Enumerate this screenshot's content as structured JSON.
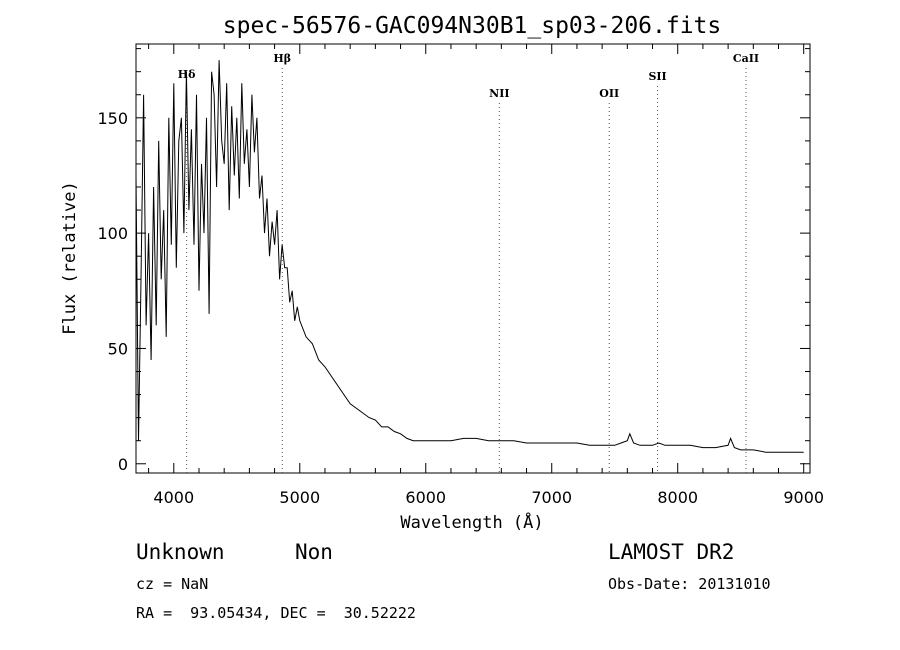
{
  "chart_data": {
    "type": "line",
    "title": "spec-56576-GAC094N30B1_sp03-206.fits",
    "xlabel": "Wavelength (Å)",
    "ylabel": "Flux (relative)",
    "xlim": [
      3700,
      9050
    ],
    "ylim": [
      -4,
      182
    ],
    "xticks": [
      {
        "value": 4000,
        "label": "4000"
      },
      {
        "value": 5000,
        "label": "5000"
      },
      {
        "value": 6000,
        "label": "6000"
      },
      {
        "value": 7000,
        "label": "7000"
      },
      {
        "value": 8000,
        "label": "8000"
      },
      {
        "value": 9000,
        "label": "9000"
      }
    ],
    "yticks": [
      {
        "value": 0,
        "label": "0"
      },
      {
        "value": 50,
        "label": "50"
      },
      {
        "value": 100,
        "label": "100"
      },
      {
        "value": 150,
        "label": "150"
      }
    ],
    "grid": false,
    "series": [
      {
        "x": [
          3700,
          3720,
          3740,
          3760,
          3780,
          3800,
          3820,
          3840,
          3860,
          3880,
          3900,
          3920,
          3940,
          3960,
          3980,
          4000,
          4020,
          4040,
          4060,
          4080,
          4100,
          4120,
          4140,
          4160,
          4180,
          4200,
          4220,
          4240,
          4260,
          4280,
          4300,
          4320,
          4340,
          4360,
          4380,
          4400,
          4420,
          4440,
          4460,
          4480,
          4500,
          4520,
          4540,
          4560,
          4580,
          4600,
          4620,
          4640,
          4660,
          4680,
          4700,
          4720,
          4740,
          4760,
          4780,
          4800,
          4820,
          4840,
          4860,
          4880,
          4900,
          4920,
          4940,
          4960,
          4980,
          5000,
          5050,
          5100,
          5150,
          5200,
          5250,
          5300,
          5350,
          5400,
          5450,
          5500,
          5550,
          5600,
          5650,
          5700,
          5750,
          5800,
          5850,
          5900,
          5950,
          6000,
          6100,
          6200,
          6300,
          6400,
          6500,
          6600,
          6700,
          6800,
          6900,
          7000,
          7100,
          7200,
          7300,
          7400,
          7500,
          7550,
          7600,
          7620,
          7650,
          7700,
          7800,
          7850,
          7900,
          8000,
          8100,
          8200,
          8300,
          8400,
          8420,
          8450,
          8500,
          8600,
          8700,
          8800,
          8900,
          9000
        ],
        "y": [
          125,
          10,
          80,
          160,
          60,
          100,
          45,
          120,
          60,
          140,
          80,
          110,
          55,
          150,
          95,
          165,
          85,
          140,
          150,
          100,
          170,
          110,
          145,
          95,
          160,
          75,
          130,
          100,
          150,
          65,
          170,
          160,
          120,
          175,
          140,
          130,
          165,
          110,
          155,
          125,
          150,
          115,
          165,
          130,
          145,
          120,
          160,
          135,
          150,
          115,
          125,
          100,
          115,
          90,
          105,
          95,
          110,
          80,
          95,
          85,
          85,
          70,
          75,
          62,
          68,
          62,
          55,
          52,
          45,
          42,
          38,
          34,
          30,
          26,
          24,
          22,
          20,
          19,
          16,
          16,
          14,
          13,
          11,
          10,
          10,
          10,
          10,
          10,
          11,
          11,
          10,
          10,
          10,
          9,
          9,
          9,
          9,
          9,
          8,
          8,
          8,
          9,
          10,
          13,
          9,
          8,
          8,
          9,
          8,
          8,
          8,
          7,
          7,
          8,
          11,
          7,
          6,
          6,
          5,
          5,
          5,
          5
        ]
      }
    ],
    "annotations": [
      {
        "label": "Hδ",
        "x": 4102
      },
      {
        "label": "Hβ",
        "x": 4861
      },
      {
        "label": "NII",
        "x": 6584
      },
      {
        "label": "OII",
        "x": 7456
      },
      {
        "label": "SII",
        "x": 7840
      },
      {
        "label": "CaII",
        "x": 8542
      }
    ]
  },
  "footer": {
    "class_label": "Unknown",
    "subclass_label": "Non",
    "survey": "LAMOST DR2",
    "cz": "cz = NaN",
    "obs_date": "Obs-Date: 20131010",
    "coords": "RA =  93.05434, DEC =  30.52222"
  }
}
